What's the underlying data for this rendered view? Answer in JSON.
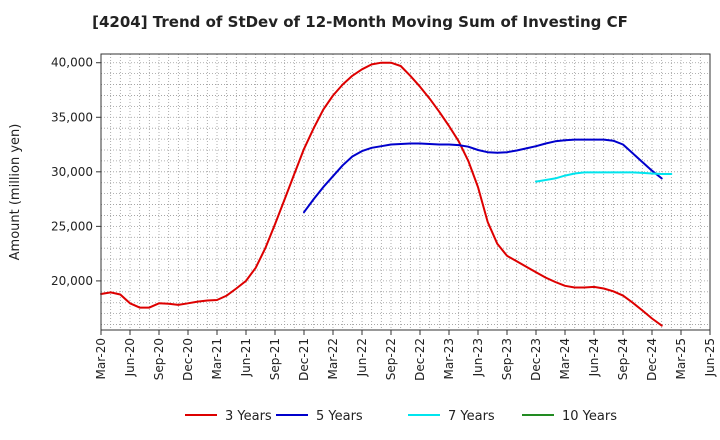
{
  "chart_data": {
    "type": "line",
    "title": "[4204]  Trend of StDev of 12-Month Moving Sum of Investing CF",
    "xlabel": "",
    "ylabel": "Amount (million yen)",
    "ylim": [
      15500,
      40800
    ],
    "yticks": [
      20000,
      25000,
      30000,
      35000,
      40000
    ],
    "ytick_labels": [
      "20,000",
      "25,000",
      "30,000",
      "35,000",
      "40,000"
    ],
    "xticks": [
      "Mar-20",
      "Jun-20",
      "Sep-20",
      "Dec-20",
      "Mar-21",
      "Jun-21",
      "Sep-21",
      "Dec-21",
      "Mar-22",
      "Jun-22",
      "Sep-22",
      "Dec-22",
      "Mar-23",
      "Jun-23",
      "Sep-23",
      "Dec-23",
      "Mar-24",
      "Jun-24",
      "Sep-24",
      "Dec-24",
      "Mar-25",
      "Jun-25"
    ],
    "x_range": [
      "Mar-20",
      "Jun-25"
    ],
    "grid": true,
    "legend_position": "bottom",
    "series": [
      {
        "name": "3 Years",
        "color": "#dd0000",
        "start": "Mar-20",
        "values": [
          18800,
          18950,
          18750,
          17950,
          17550,
          17550,
          17950,
          17900,
          17800,
          17950,
          18100,
          18200,
          18250,
          18650,
          19300,
          20000,
          21200,
          23000,
          25200,
          27500,
          29800,
          32100,
          34000,
          35700,
          37000,
          38000,
          38800,
          39400,
          39850,
          40000,
          40000,
          39700,
          38800,
          37800,
          36700,
          35500,
          34200,
          32800,
          31000,
          28600,
          25400,
          23400,
          22300,
          21800,
          21300,
          20800,
          20300,
          19900,
          19550,
          19400,
          19400,
          19450,
          19300,
          19050,
          18650,
          18000,
          17300,
          16550,
          15900
        ]
      },
      {
        "name": "5 Years",
        "color": "#0000cc",
        "start": "Dec-21",
        "values": [
          26300,
          27500,
          28600,
          29600,
          30600,
          31400,
          31900,
          32200,
          32350,
          32500,
          32550,
          32600,
          32600,
          32550,
          32500,
          32500,
          32450,
          32300,
          32000,
          31800,
          31750,
          31800,
          31950,
          32150,
          32350,
          32600,
          32800,
          32900,
          32950,
          32950,
          32950,
          32950,
          32850,
          32500,
          31700,
          30900,
          30100,
          29400
        ]
      },
      {
        "name": "7 Years",
        "color": "#00e5ee",
        "start": "Dec-23",
        "values": [
          29100,
          29250,
          29400,
          29650,
          29850,
          29950,
          29950,
          29950,
          29950,
          29950,
          29950,
          29900,
          29850,
          29800,
          29800
        ]
      },
      {
        "name": "10 Years",
        "color": "#228b22",
        "start": "Mar-25",
        "values": []
      }
    ]
  }
}
